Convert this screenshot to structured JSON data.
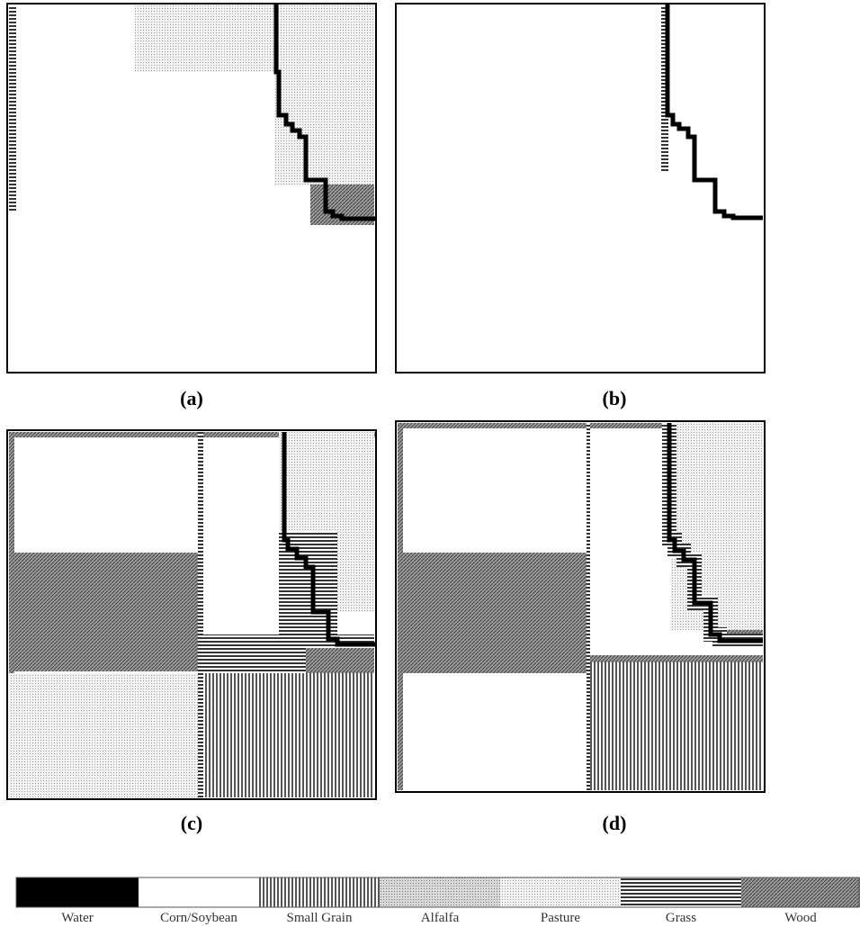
{
  "panels": [
    {
      "label": "(a)"
    },
    {
      "label": "(b)"
    },
    {
      "label": "(c)"
    },
    {
      "label": "(d)"
    }
  ],
  "legend": [
    {
      "label": "Water"
    },
    {
      "label": "Corn/Soybean"
    },
    {
      "label": "Small Grain"
    },
    {
      "label": "Alfalfa"
    },
    {
      "label": "Pasture"
    },
    {
      "label": "Grass"
    },
    {
      "label": "Wood"
    }
  ]
}
